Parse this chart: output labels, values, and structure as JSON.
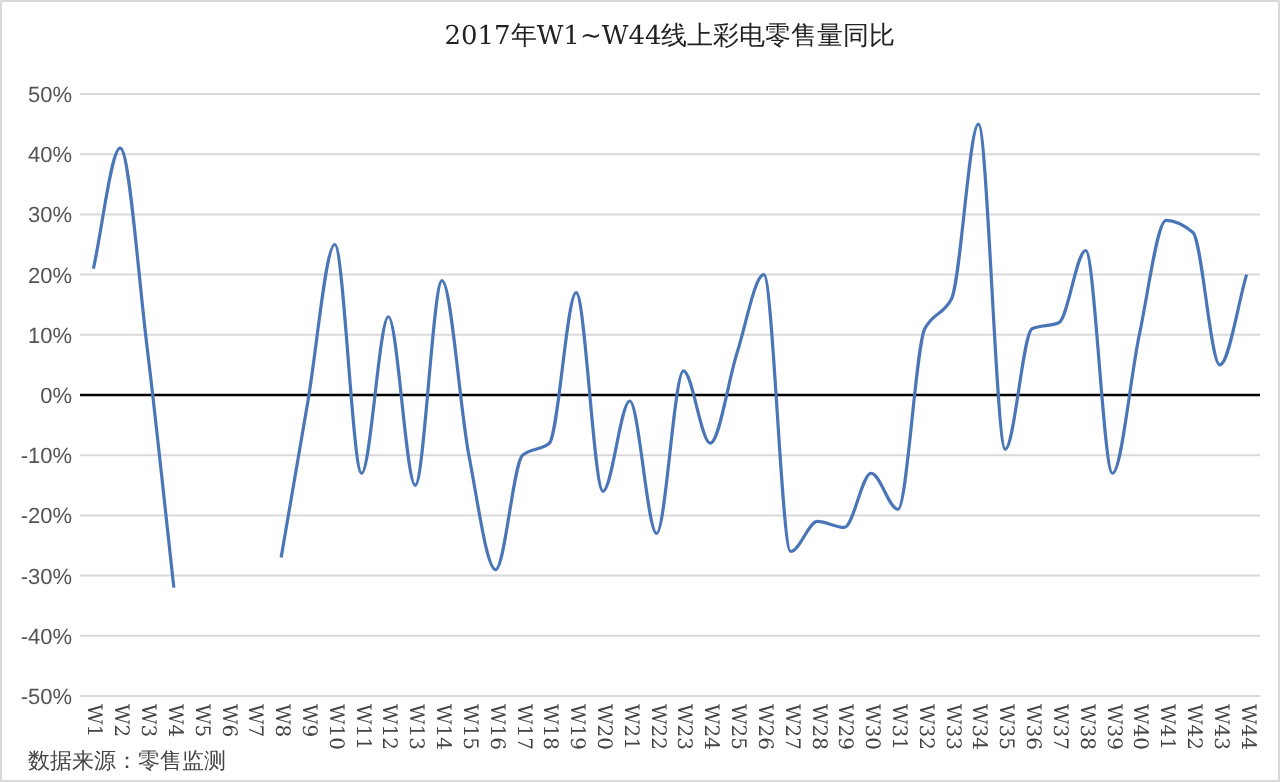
{
  "chart_data": {
    "type": "line",
    "title": "2017年W1~W44线上彩电零售量同比",
    "categories": [
      "W1",
      "W2",
      "W3",
      "W4",
      "W5",
      "W6",
      "W7",
      "W8",
      "W9",
      "W10",
      "W11",
      "W12",
      "W13",
      "W14",
      "W15",
      "W16",
      "W17",
      "W18",
      "W19",
      "W20",
      "W21",
      "W22",
      "W23",
      "W24",
      "W25",
      "W26",
      "W27",
      "W28",
      "W29",
      "W30",
      "W31",
      "W32",
      "W33",
      "W34",
      "W35",
      "W36",
      "W37",
      "W38",
      "W39",
      "W40",
      "W41",
      "W42",
      "W43",
      "W44"
    ],
    "series": [
      {
        "color": "#4a76b8",
        "values": [
          21,
          41,
          8,
          -32,
          null,
          null,
          null,
          -27,
          -1,
          25,
          -13,
          13,
          -15,
          19,
          -10,
          -29,
          -10,
          -8,
          17,
          -16,
          -1,
          -23,
          4,
          -8,
          7,
          20,
          -26,
          -21,
          -22,
          -13,
          -19,
          11,
          16,
          45,
          -9,
          11,
          12,
          24,
          -13,
          10,
          29,
          27,
          5,
          20
        ]
      }
    ],
    "ylim": [
      -50,
      50
    ],
    "yticks": [
      {
        "value": -50,
        "label": "-50%"
      },
      {
        "value": -40,
        "label": "-40%"
      },
      {
        "value": -30,
        "label": "-30%"
      },
      {
        "value": -20,
        "label": "-20%"
      },
      {
        "value": -10,
        "label": "-10%"
      },
      {
        "value": 0,
        "label": "0%"
      },
      {
        "value": 10,
        "label": "10%"
      },
      {
        "value": 20,
        "label": "20%"
      },
      {
        "value": 30,
        "label": "30%"
      },
      {
        "value": 40,
        "label": "40%"
      },
      {
        "value": 50,
        "label": "50%"
      }
    ],
    "grid": "y",
    "ref_lines": [
      {
        "axis": "y",
        "value": 0,
        "color": "#000000"
      }
    ],
    "annotations": [
      "数据来源：零售监测"
    ]
  }
}
